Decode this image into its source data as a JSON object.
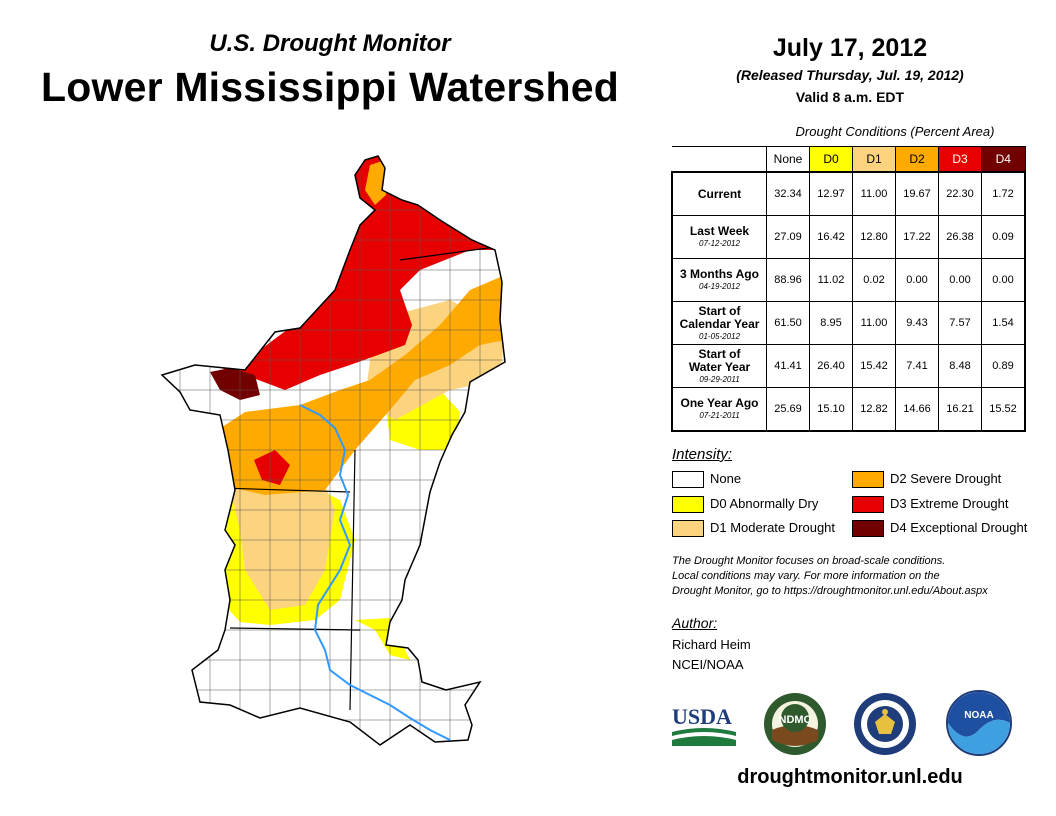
{
  "header": {
    "subtitle": "U.S. Drought Monitor",
    "title": "Lower Mississippi Watershed",
    "date": "July 17, 2012",
    "released": "(Released Thursday, Jul. 19, 2012)",
    "valid": "Valid 8 a.m. EDT"
  },
  "table": {
    "caption": "Drought Conditions (Percent Area)",
    "columns": [
      "None",
      "D0",
      "D1",
      "D2",
      "D3",
      "D4"
    ],
    "column_colors": [
      "#ffffff",
      "#ffff00",
      "#fcd37f",
      "#ffaa00",
      "#e60000",
      "#730000"
    ],
    "rows": [
      {
        "label": "Current",
        "date": "",
        "values": [
          "32.34",
          "12.97",
          "11.00",
          "19.67",
          "22.30",
          "1.72"
        ]
      },
      {
        "label": "Last Week",
        "date": "07-12-2012",
        "values": [
          "27.09",
          "16.42",
          "12.80",
          "17.22",
          "26.38",
          "0.09"
        ]
      },
      {
        "label": "3 Months Ago",
        "date": "04-19-2012",
        "values": [
          "88.96",
          "11.02",
          "0.02",
          "0.00",
          "0.00",
          "0.00"
        ]
      },
      {
        "label_lines": [
          "Start of",
          "Calendar Year"
        ],
        "date": "01-05-2012",
        "values": [
          "61.50",
          "8.95",
          "11.00",
          "9.43",
          "7.57",
          "1.54"
        ]
      },
      {
        "label_lines": [
          "Start of",
          "Water Year"
        ],
        "date": "09-29-2011",
        "values": [
          "41.41",
          "26.40",
          "15.42",
          "7.41",
          "8.48",
          "0.89"
        ]
      },
      {
        "label": "One Year Ago",
        "date": "07-21-2011",
        "values": [
          "25.69",
          "15.10",
          "12.82",
          "14.66",
          "16.21",
          "15.52"
        ]
      }
    ]
  },
  "legend": {
    "title": "Intensity:",
    "items": [
      {
        "label": "None",
        "color": "#ffffff"
      },
      {
        "label": "D0 Abnormally Dry",
        "color": "#ffff00"
      },
      {
        "label": "D1 Moderate Drought",
        "color": "#fcd37f"
      },
      {
        "label": "D2 Severe Drought",
        "color": "#ffaa00"
      },
      {
        "label": "D3 Extreme Drought",
        "color": "#e60000"
      },
      {
        "label": "D4 Exceptional Drought",
        "color": "#730000"
      }
    ]
  },
  "note": {
    "lines": [
      "The Drought Monitor focuses on broad-scale conditions.",
      "Local conditions may vary. For more information on the",
      "Drought Monitor, go to https://droughtmonitor.unl.edu/About.aspx"
    ]
  },
  "author": {
    "title": "Author:",
    "name": "Richard Heim",
    "org": "NCEI/NOAA"
  },
  "logos": {
    "usda": "USDA",
    "ndmc": "NDMC",
    "noaa": "NOAA"
  },
  "website": "droughtmonitor.unl.edu",
  "river_color": "#3399ff"
}
